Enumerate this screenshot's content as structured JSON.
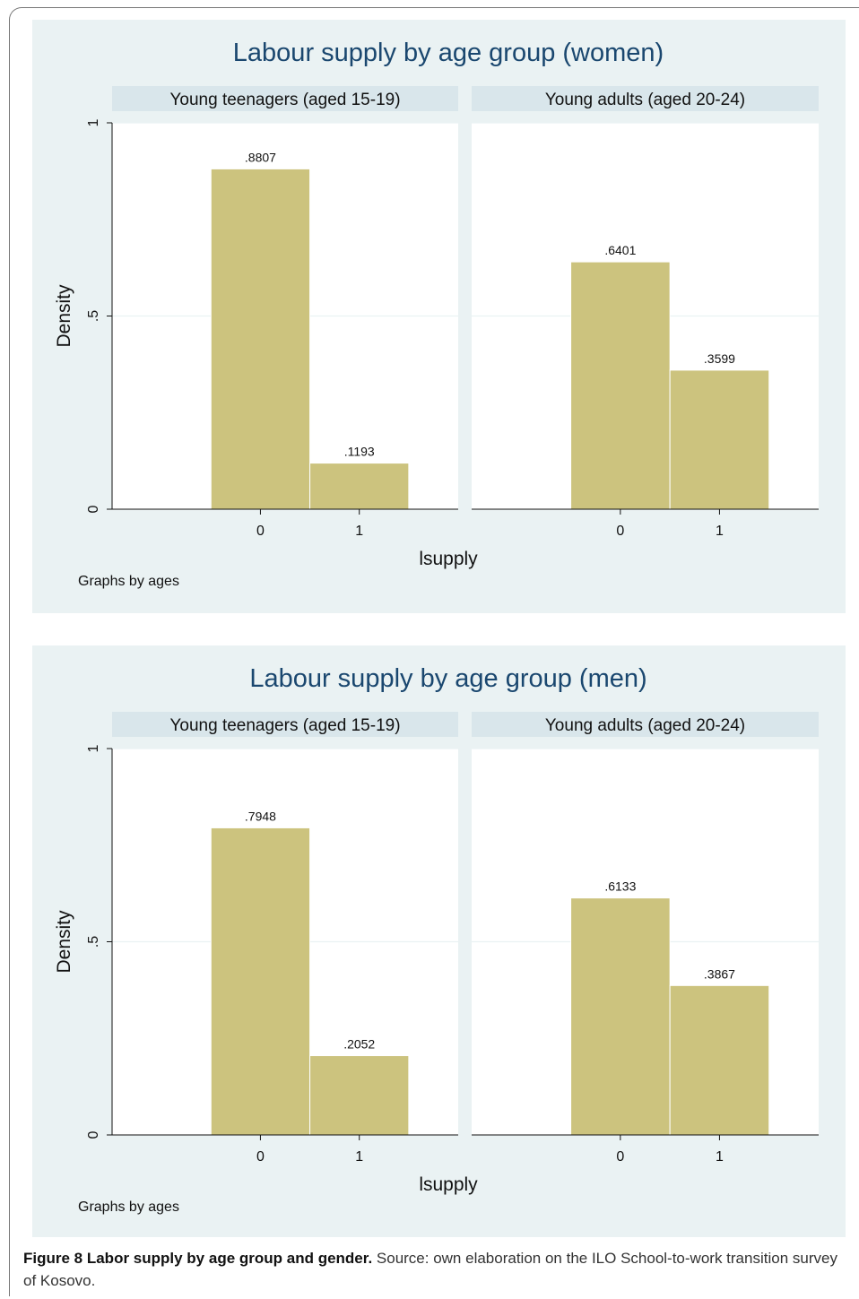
{
  "chart_data": [
    {
      "type": "bar",
      "title": "Labour supply by age group (women)",
      "xlabel": "lsupply",
      "ylabel": "Density",
      "ylim": [
        0,
        1
      ],
      "yticks": [
        {
          "value": 0,
          "label": "0"
        },
        {
          "value": 0.5,
          "label": ".5"
        },
        {
          "value": 1,
          "label": "1"
        }
      ],
      "note": "Graphs by ages",
      "facets": [
        {
          "name": "Young teenagers (aged 15-19)",
          "categories": [
            "0",
            "1"
          ],
          "values": [
            0.8807,
            0.1193
          ],
          "value_labels": [
            ".8807",
            ".1193"
          ]
        },
        {
          "name": "Young adults (aged 20-24)",
          "categories": [
            "0",
            "1"
          ],
          "values": [
            0.6401,
            0.3599
          ],
          "value_labels": [
            ".6401",
            ".3599"
          ]
        }
      ]
    },
    {
      "type": "bar",
      "title": "Labour supply by age group (men)",
      "xlabel": "lsupply",
      "ylabel": "Density",
      "ylim": [
        0,
        1
      ],
      "yticks": [
        {
          "value": 0,
          "label": "0"
        },
        {
          "value": 0.5,
          "label": ".5"
        },
        {
          "value": 1,
          "label": "1"
        }
      ],
      "note": "Graphs by ages",
      "facets": [
        {
          "name": "Young teenagers (aged 15-19)",
          "categories": [
            "0",
            "1"
          ],
          "values": [
            0.7948,
            0.2052
          ],
          "value_labels": [
            ".7948",
            ".2052"
          ]
        },
        {
          "name": "Young adults (aged 20-24)",
          "categories": [
            "0",
            "1"
          ],
          "values": [
            0.6133,
            0.3867
          ],
          "value_labels": [
            ".6133",
            ".3867"
          ]
        }
      ]
    }
  ],
  "colors": {
    "bar_fill": "#ccc37e",
    "bar_edge": "#ffffff",
    "panel_bg": "#eaf2f3",
    "strip_bg": "#d9e6eb",
    "title": "#1a476f"
  },
  "caption": {
    "label": "Figure 8 Labor supply by age group and gender.",
    "text": " Source: own elaboration on the ILO School-to-work transition survey of Kosovo."
  }
}
